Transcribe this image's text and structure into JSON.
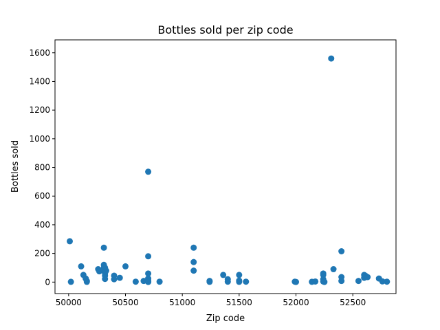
{
  "chart_data": {
    "type": "scatter",
    "title": "Bottles sold per zip code",
    "xlabel": "Zip code",
    "ylabel": "Bottles sold",
    "xlim": [
      49880,
      52880
    ],
    "ylim": [
      -80,
      1690
    ],
    "xticks": [
      50000,
      50500,
      51000,
      51500,
      52000,
      52500
    ],
    "xtick_labels": [
      "50000",
      "50500",
      "51000",
      "51500",
      "52000",
      "52500"
    ],
    "yticks": [
      0,
      200,
      400,
      600,
      800,
      1000,
      1200,
      1400,
      1600
    ],
    "ytick_labels": [
      "0",
      "200",
      "400",
      "600",
      "800",
      "1000",
      "1200",
      "1400",
      "1600"
    ],
    "marker_color": "#1f77b4",
    "grid": false,
    "series": [
      {
        "x": [
          50010,
          50020,
          50110,
          50130,
          50150,
          50160,
          50160,
          50260,
          50270,
          50310,
          50310,
          50310,
          50310,
          50320,
          50320,
          50320,
          50320,
          50330,
          50400,
          50400,
          50450,
          50500,
          50590,
          50660,
          50700,
          50700,
          50700,
          50700,
          50700,
          50700,
          50700,
          50700,
          50800,
          51100,
          51100,
          51100,
          51240,
          51240,
          51360,
          51400,
          51400,
          51500,
          51500,
          51500,
          51560,
          51990,
          52000,
          52140,
          52170,
          52240,
          52240,
          52240,
          52240,
          52250,
          52310,
          52330,
          52400,
          52400,
          52400,
          52550,
          52600,
          52600,
          52610,
          52630,
          52730,
          52760,
          52800
        ],
        "y": [
          285,
          2,
          110,
          50,
          25,
          8,
          2,
          90,
          75,
          240,
          120,
          100,
          80,
          60,
          45,
          22,
          100,
          80,
          45,
          20,
          30,
          110,
          3,
          8,
          770,
          180,
          60,
          25,
          12,
          5,
          2,
          1,
          3,
          240,
          140,
          80,
          8,
          2,
          50,
          20,
          3,
          50,
          10,
          2,
          3,
          3,
          1,
          2,
          4,
          60,
          50,
          20,
          4,
          1,
          1560,
          90,
          215,
          35,
          8,
          8,
          50,
          30,
          45,
          35,
          25,
          5,
          3
        ]
      }
    ]
  }
}
